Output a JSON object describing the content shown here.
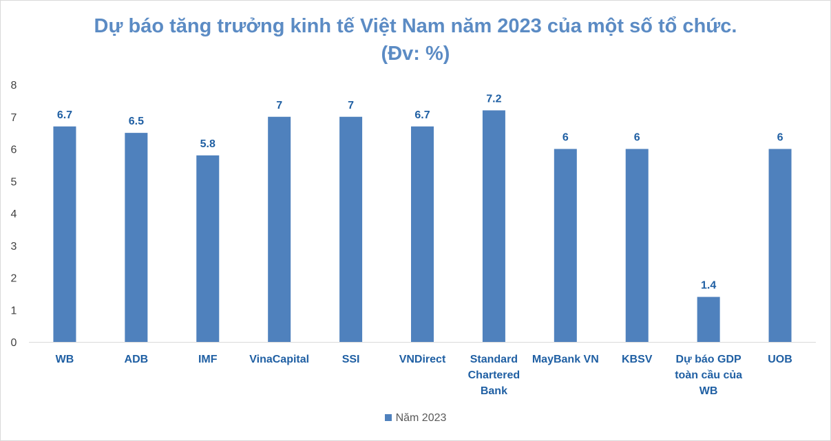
{
  "chart_data": {
    "type": "bar",
    "title_line1": "Dự báo tăng trưởng kinh tế Việt Nam năm 2023 của một số tổ chức.",
    "title_line2": "(Đv: %)",
    "categories": [
      "WB",
      "ADB",
      "IMF",
      "VinaCapital",
      "SSI",
      "VNDirect",
      "Standard Chartered Bank",
      "MayBank VN",
      "KBSV",
      "Dự báo GDP toàn cầu của WB",
      "UOB"
    ],
    "category_lines": [
      [
        "WB"
      ],
      [
        "ADB"
      ],
      [
        "IMF"
      ],
      [
        "VinaCapital"
      ],
      [
        "SSI"
      ],
      [
        "VNDirect"
      ],
      [
        "Standard",
        "Chartered",
        "Bank"
      ],
      [
        "MayBank VN"
      ],
      [
        "KBSV"
      ],
      [
        "Dự báo GDP",
        "toàn cầu của",
        "WB"
      ],
      [
        "UOB"
      ]
    ],
    "series": [
      {
        "name": "Năm 2023",
        "values": [
          6.7,
          6.5,
          5.8,
          7,
          7,
          6.7,
          7.2,
          6,
          6,
          1.4,
          6
        ]
      }
    ],
    "data_labels": [
      "6.7",
      "6.5",
      "5.8",
      "7",
      "7",
      "6.7",
      "7.2",
      "6",
      "6",
      "1.4",
      "6"
    ],
    "ylim": [
      0,
      8
    ],
    "yticks": [
      0,
      1,
      2,
      3,
      4,
      5,
      6,
      7,
      8
    ],
    "grid": false,
    "legend_position": "bottom",
    "colors": {
      "bar": "#4f81bd",
      "title": "#5b8bc4",
      "label": "#1f5fa3",
      "axis": "#d9d9d9"
    }
  }
}
